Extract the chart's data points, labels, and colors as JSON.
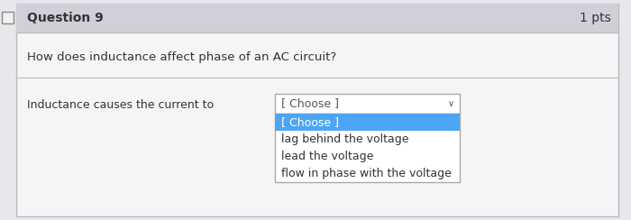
{
  "title": "Question 9",
  "pts": "1 pts",
  "question": "How does inductance affect phase of an AC circuit?",
  "label": "Inductance causes the current to",
  "dropdown_text": "[ Choose ]",
  "dropdown_options": [
    "[ Choose ]",
    "lag behind the voltage",
    "lead the voltage",
    "flow in phase with the voltage"
  ],
  "header_bg": "#d0d0d8",
  "body_bg": "#e8e8ec",
  "card_bg": "#f5f5f7",
  "dropdown_bg": "#ffffff",
  "dropdown_border": "#aaaaaa",
  "selected_bg": "#4da6f5",
  "selected_text": "#ffffff",
  "normal_text": "#333333",
  "title_fontsize": 10,
  "question_fontsize": 9.5,
  "label_fontsize": 9,
  "option_fontsize": 9,
  "outer_border": "#bbbbbb",
  "header_border": "#c0c0c0"
}
